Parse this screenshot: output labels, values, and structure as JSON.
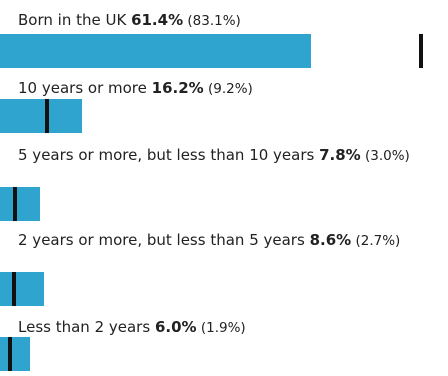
{
  "chart_data": {
    "type": "bar",
    "orientation": "horizontal",
    "title": "",
    "bar_color": "#2fa4cf",
    "marker_color": "#111111",
    "max_value": 61.4,
    "categories": [
      {
        "label": "Born in the UK",
        "value": 61.4,
        "value_text": "61.4%",
        "comparison": 83.1,
        "comparison_text": "(83.1%)"
      },
      {
        "label": "10 years or more",
        "value": 16.2,
        "value_text": "16.2%",
        "comparison": 9.2,
        "comparison_text": "(9.2%)"
      },
      {
        "label": "5 years or more, but less than 10 years",
        "value": 7.8,
        "value_text": "7.8%",
        "comparison": 3.0,
        "comparison_text": "(3.0%)"
      },
      {
        "label": "2 years or more, but less than 5 years",
        "value": 8.6,
        "value_text": "8.6%",
        "comparison": 2.7,
        "comparison_text": "(2.7%)"
      },
      {
        "label": "Less than 2 years",
        "value": 6.0,
        "value_text": "6.0%",
        "comparison": 1.9,
        "comparison_text": "(1.9%)"
      }
    ]
  }
}
